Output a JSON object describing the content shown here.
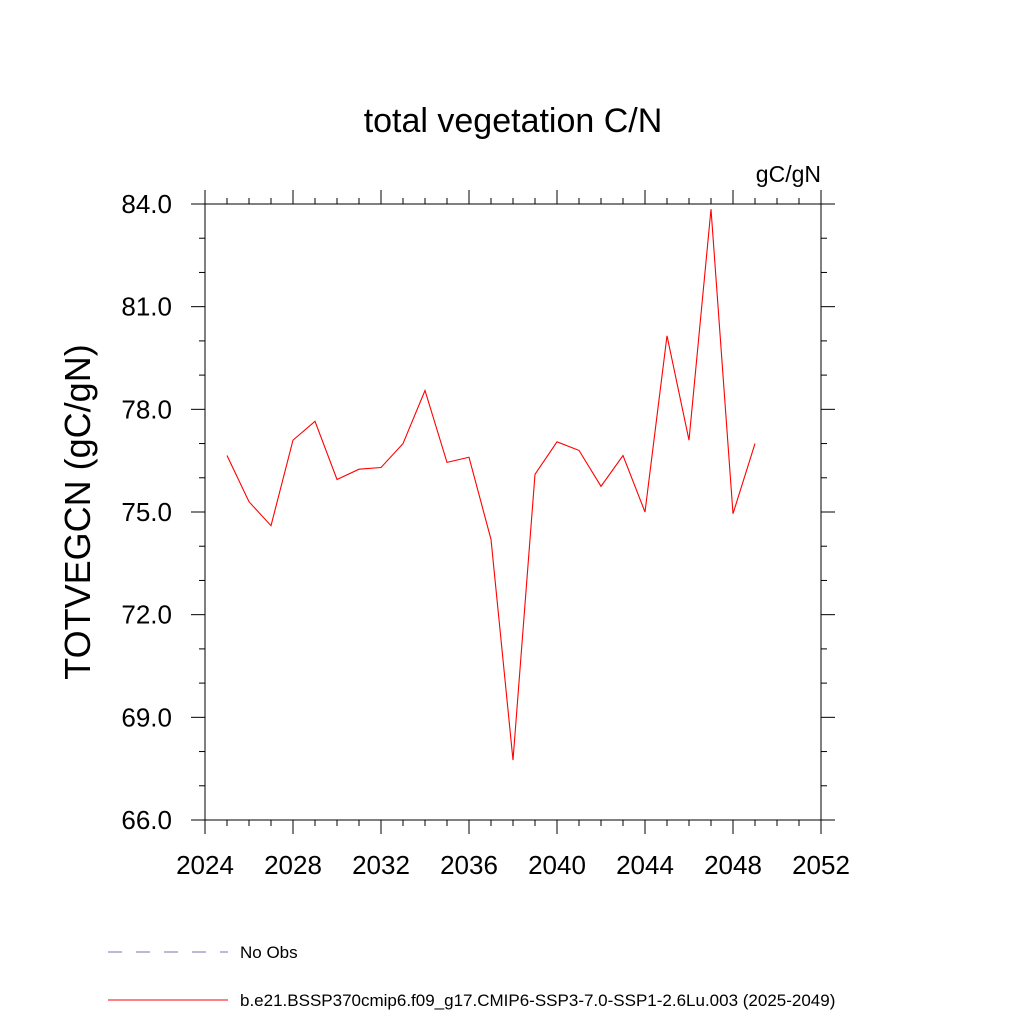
{
  "chart_data": {
    "type": "line",
    "title": "total vegetation C/N",
    "units": "gC/gN",
    "ylabel": "TOTVEGCN  (gC/gN)",
    "xlabel": "",
    "xlim": [
      2024,
      2052
    ],
    "ylim": [
      66.0,
      84.0
    ],
    "xticks": [
      2024,
      2028,
      2032,
      2036,
      2040,
      2044,
      2048,
      2052
    ],
    "xtick_labels": [
      "2024",
      "2028",
      "2032",
      "2036",
      "2040",
      "2044",
      "2048",
      "2052"
    ],
    "yticks": [
      66.0,
      69.0,
      72.0,
      75.0,
      78.0,
      81.0,
      84.0
    ],
    "ytick_labels": [
      "66.0",
      "69.0",
      "72.0",
      "75.0",
      "78.0",
      "81.0",
      "84.0"
    ],
    "grid": false,
    "series": [
      {
        "name": "b.e21.BSSP370cmip6.f09_g17.CMIP6-SSP3-7.0-SSP1-2.6Lu.003 (2025-2049)",
        "color": "#ff0000",
        "x": [
          2025,
          2026,
          2027,
          2028,
          2029,
          2030,
          2031,
          2032,
          2033,
          2034,
          2035,
          2036,
          2037,
          2038,
          2039,
          2040,
          2041,
          2042,
          2043,
          2044,
          2045,
          2046,
          2047,
          2048,
          2049
        ],
        "y": [
          76.65,
          75.3,
          74.6,
          77.1,
          77.65,
          75.95,
          76.25,
          76.3,
          77.0,
          78.55,
          76.45,
          76.6,
          74.2,
          67.75,
          76.1,
          77.05,
          76.8,
          75.75,
          76.65,
          75.0,
          80.15,
          77.1,
          83.85,
          74.95,
          77.0
        ]
      }
    ],
    "legend": [
      {
        "label": "No Obs",
        "style": "dashed",
        "color": "#7b6fb0"
      },
      {
        "label": "b.e21.BSSP370cmip6.f09_g17.CMIP6-SSP3-7.0-SSP1-2.6Lu.003 (2025-2049)",
        "style": "solid",
        "color": "#ff0000"
      }
    ],
    "legend_position": "bottom-left"
  }
}
